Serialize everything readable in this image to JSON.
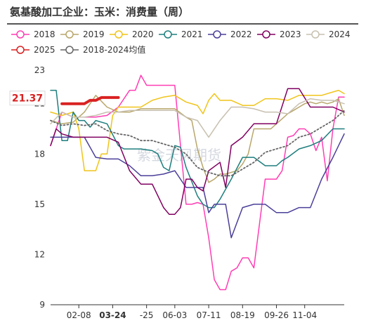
{
  "page": {
    "title": "氨基酸加工企业：玉米：消费量（周）"
  },
  "chart_data": {
    "type": "line",
    "title": "氨基酸加工企业：玉米：消费量（周）",
    "ylim": [
      9,
      23
    ],
    "yticks": [
      9,
      12,
      15,
      18,
      21,
      23
    ],
    "xlim": [
      1,
      53
    ],
    "xticks": [
      {
        "week": 6,
        "label": "02-08",
        "highlight": false
      },
      {
        "week": 12,
        "label": "03-24",
        "highlight": true
      },
      {
        "week": 18,
        "label": "-25",
        "highlight": false
      },
      {
        "week": 23,
        "label": "06-03",
        "highlight": false
      },
      {
        "week": 29,
        "label": "07-11",
        "highlight": false
      },
      {
        "week": 35,
        "label": "08-19",
        "highlight": false
      },
      {
        "week": 41,
        "label": "09-26",
        "highlight": false
      },
      {
        "week": 46,
        "label": "11-04",
        "highlight": false
      }
    ],
    "grid": false,
    "last_value_label": "21.37",
    "watermark": "紫金天风期货",
    "series": [
      {
        "name": "2018",
        "color": "#ff3eb4",
        "dashed": false,
        "width": 1.5,
        "x": [
          1,
          3,
          5,
          7,
          9,
          11,
          13,
          15,
          16,
          17,
          18,
          19,
          21,
          23,
          25,
          26,
          27,
          28,
          29,
          30,
          31,
          32,
          33,
          34,
          35,
          36,
          37,
          39,
          40,
          41,
          42,
          43,
          44,
          45,
          46,
          47,
          48,
          49,
          50,
          51,
          52,
          53
        ],
        "y": [
          18.5,
          20.5,
          20.2,
          20.2,
          20.2,
          20.3,
          20.8,
          21.8,
          21.8,
          22.7,
          22.1,
          22.1,
          22.1,
          22.1,
          15.0,
          15.0,
          15.1,
          15.0,
          13.0,
          10.5,
          9.9,
          9.9,
          11.0,
          11.2,
          11.8,
          11.8,
          11.2,
          16.5,
          16.5,
          16.5,
          17.0,
          19.0,
          19.1,
          19.5,
          19.5,
          19.2,
          18.2,
          19.0,
          16.4,
          19.5,
          21.4,
          21.4
        ]
      },
      {
        "name": "2019",
        "color": "#b8a66a",
        "dashed": false,
        "width": 1.5,
        "x": [
          1,
          3,
          5,
          7,
          9,
          11,
          13,
          15,
          17,
          19,
          21,
          23,
          25,
          26,
          27,
          28,
          29,
          30,
          31,
          32,
          33,
          34,
          35,
          36,
          37,
          38,
          39,
          40,
          41,
          42,
          43,
          44,
          45,
          46,
          47,
          48,
          49,
          50,
          51,
          52,
          53
        ],
        "y": [
          20.0,
          19.8,
          19.9,
          20.5,
          21.5,
          20.8,
          20.5,
          20.5,
          20.7,
          20.7,
          20.7,
          20.7,
          20.2,
          20.0,
          18.3,
          17.2,
          16.3,
          16.5,
          16.8,
          16.8,
          16.9,
          17.0,
          17.4,
          18.0,
          19.5,
          19.5,
          19.5,
          19.5,
          19.8,
          20.1,
          20.4,
          20.6,
          20.8,
          21.0,
          21.1,
          21.0,
          21.1,
          21.0,
          21.1,
          21.3,
          20.3
        ]
      },
      {
        "name": "2020",
        "color": "#f0c419",
        "dashed": false,
        "width": 1.5,
        "x": [
          1,
          3,
          5,
          6,
          7,
          8,
          9,
          10,
          11,
          12,
          13,
          14,
          15,
          17,
          19,
          21,
          23,
          25,
          27,
          28,
          29,
          30,
          31,
          33,
          35,
          37,
          39,
          41,
          43,
          45,
          47,
          49,
          51,
          52,
          53
        ],
        "y": [
          20.5,
          20.3,
          20.5,
          19.5,
          17.0,
          17.0,
          17.0,
          18.0,
          18.0,
          20.3,
          20.8,
          20.8,
          20.8,
          20.8,
          21.2,
          21.4,
          21.5,
          21.1,
          20.9,
          20.4,
          21.2,
          21.6,
          21.2,
          21.2,
          20.9,
          20.9,
          21.3,
          21.3,
          21.2,
          21.5,
          21.5,
          21.5,
          21.7,
          21.8,
          21.6
        ]
      },
      {
        "name": "2021",
        "color": "#1e7e7e",
        "dashed": false,
        "width": 1.5,
        "x": [
          1,
          2,
          3,
          4,
          5,
          6,
          7,
          8,
          9,
          11,
          13,
          14,
          15,
          17,
          19,
          20,
          21,
          22,
          23,
          24,
          25,
          27,
          28,
          29,
          30,
          31,
          33,
          35,
          36,
          37,
          39,
          41,
          42,
          43,
          45,
          47,
          49,
          51,
          53
        ],
        "y": [
          21.8,
          21.8,
          18.8,
          18.8,
          20.5,
          20.0,
          20.0,
          19.6,
          20.0,
          19.8,
          18.5,
          18.3,
          18.3,
          18.3,
          18.2,
          18.0,
          17.2,
          17.0,
          18.5,
          18.4,
          17.2,
          15.5,
          15.0,
          14.8,
          14.8,
          15.3,
          16.5,
          17.8,
          17.8,
          17.8,
          17.3,
          17.3,
          17.6,
          17.8,
          18.3,
          18.5,
          18.8,
          19.5,
          19.5
        ]
      },
      {
        "name": "2022",
        "color": "#4a3f99",
        "dashed": false,
        "width": 1.5,
        "x": [
          1,
          3,
          5,
          7,
          9,
          11,
          13,
          15,
          17,
          19,
          21,
          23,
          25,
          26,
          27,
          28,
          29,
          30,
          31,
          32,
          33,
          35,
          37,
          39,
          41,
          43,
          45,
          47,
          49,
          51,
          53
        ],
        "y": [
          19.0,
          19.0,
          19.0,
          19.0,
          17.8,
          17.7,
          17.7,
          17.3,
          16.7,
          16.7,
          16.8,
          17.0,
          16.0,
          16.0,
          16.0,
          16.0,
          14.5,
          15.0,
          15.0,
          15.0,
          13.0,
          14.8,
          15.0,
          15.0,
          14.5,
          14.5,
          14.8,
          14.8,
          16.5,
          17.8,
          19.2
        ]
      },
      {
        "name": "2023",
        "color": "#800060",
        "dashed": false,
        "width": 1.5,
        "x": [
          1,
          2,
          3,
          5,
          7,
          9,
          11,
          13,
          15,
          17,
          19,
          21,
          22,
          23,
          24,
          25,
          26,
          27,
          28,
          29,
          31,
          32,
          33,
          35,
          37,
          39,
          41,
          43,
          45,
          47,
          49,
          51,
          53
        ],
        "y": [
          18.5,
          19.5,
          19.2,
          19.0,
          19.0,
          19.0,
          19.0,
          18.7,
          17.0,
          16.2,
          16.2,
          14.8,
          14.4,
          14.4,
          14.8,
          16.5,
          16.5,
          16.0,
          15.8,
          17.0,
          17.5,
          16.0,
          18.5,
          19.0,
          19.8,
          19.8,
          19.8,
          21.9,
          21.9,
          20.8,
          20.8,
          20.8,
          20.5
        ]
      },
      {
        "name": "2024",
        "color": "#c8c0b0",
        "dashed": false,
        "width": 1.5,
        "x": [
          1,
          3,
          5,
          7,
          9,
          11,
          13,
          15,
          17,
          19,
          21,
          23,
          25,
          27,
          29,
          31,
          33,
          35,
          37,
          39,
          41,
          43,
          45,
          47,
          49,
          51,
          53
        ],
        "y": [
          19.8,
          20.5,
          20.2,
          20.2,
          20.3,
          20.5,
          20.5,
          20.6,
          20.6,
          20.6,
          20.6,
          20.6,
          20.2,
          20.0,
          19.0,
          20.0,
          20.8,
          20.8,
          20.7,
          20.5,
          20.5,
          20.4,
          21.0,
          21.3,
          21.2,
          21.2,
          21.0
        ]
      },
      {
        "name": "2025",
        "color": "#d92121",
        "dashed": false,
        "width": 4,
        "x": [
          3,
          4,
          5,
          6,
          7,
          8,
          9,
          10,
          11,
          12,
          13
        ],
        "y": [
          21.0,
          21.0,
          21.0,
          21.0,
          21.0,
          21.2,
          21.2,
          21.37,
          21.37,
          21.37,
          21.37
        ]
      },
      {
        "name": "2018-2024均值",
        "color": "#666666",
        "dashed": true,
        "width": 1.8,
        "x": [
          1,
          3,
          5,
          7,
          9,
          11,
          13,
          15,
          17,
          19,
          21,
          23,
          25,
          27,
          29,
          31,
          33,
          35,
          37,
          39,
          41,
          43,
          45,
          47,
          49,
          51,
          53
        ],
        "y": [
          20.0,
          19.7,
          19.8,
          19.7,
          19.8,
          19.4,
          19.2,
          19.1,
          18.8,
          18.8,
          18.6,
          18.4,
          18.0,
          17.2,
          16.9,
          16.7,
          16.7,
          17.1,
          17.5,
          18.1,
          18.3,
          18.5,
          19.0,
          19.2,
          19.6,
          20.0,
          20.6
        ]
      }
    ]
  }
}
